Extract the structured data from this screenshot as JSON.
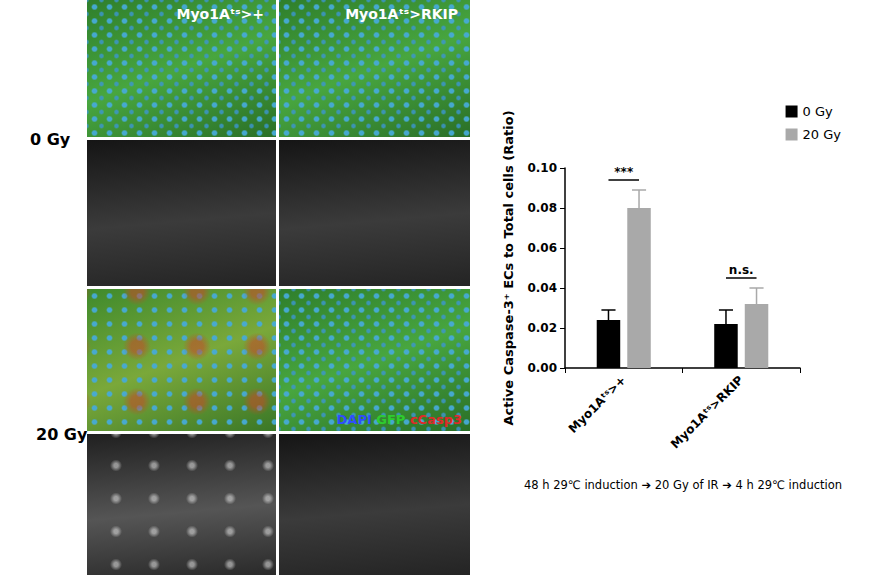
{
  "figure": {
    "columns": [
      "Myo1Aᵗˢ>+",
      "Myo1Aᵗˢ>RKIP"
    ],
    "rows": [
      "0 Gy",
      "20 Gy"
    ],
    "stains": [
      {
        "text": "DAPI",
        "color": "#2f4dff"
      },
      {
        "text": "GFP",
        "color": "#2ecc2e"
      },
      {
        "text": "cCasp3",
        "color": "#e02a2a"
      }
    ],
    "footnote": "48 h 29℃ induction ➔ 20 Gy of IR ➔ 4 h 29℃ induction"
  },
  "chart_data": {
    "type": "bar",
    "y_label": "Active Caspase-3⁺ ECs to Total cells (Ratio)",
    "categories": [
      "Myo1Aᵗˢ>+",
      "Myo1Aᵗˢ>RKIP"
    ],
    "series": [
      {
        "name": "0 Gy",
        "color": "#000000",
        "values": [
          0.024,
          0.022
        ],
        "errors": [
          0.005,
          0.007
        ]
      },
      {
        "name": "20 Gy",
        "color": "#a9a9a9",
        "values": [
          0.08,
          0.032
        ],
        "errors": [
          0.009,
          0.008
        ]
      }
    ],
    "significance": [
      {
        "category": "Myo1Aᵗˢ>+",
        "label": "***"
      },
      {
        "category": "Myo1Aᵗˢ>RKIP",
        "label": "n.s."
      }
    ],
    "ylim": [
      0,
      0.1
    ],
    "yticks": [
      {
        "value": 0,
        "label": "0.00"
      },
      {
        "value": 0.02,
        "label": "0.02"
      },
      {
        "value": 0.04,
        "label": "0.04"
      },
      {
        "value": 0.06,
        "label": "0.06"
      },
      {
        "value": 0.08,
        "label": "0.08"
      },
      {
        "value": 0.1,
        "label": "0.10"
      }
    ],
    "legend": "top-right",
    "grid": false
  }
}
